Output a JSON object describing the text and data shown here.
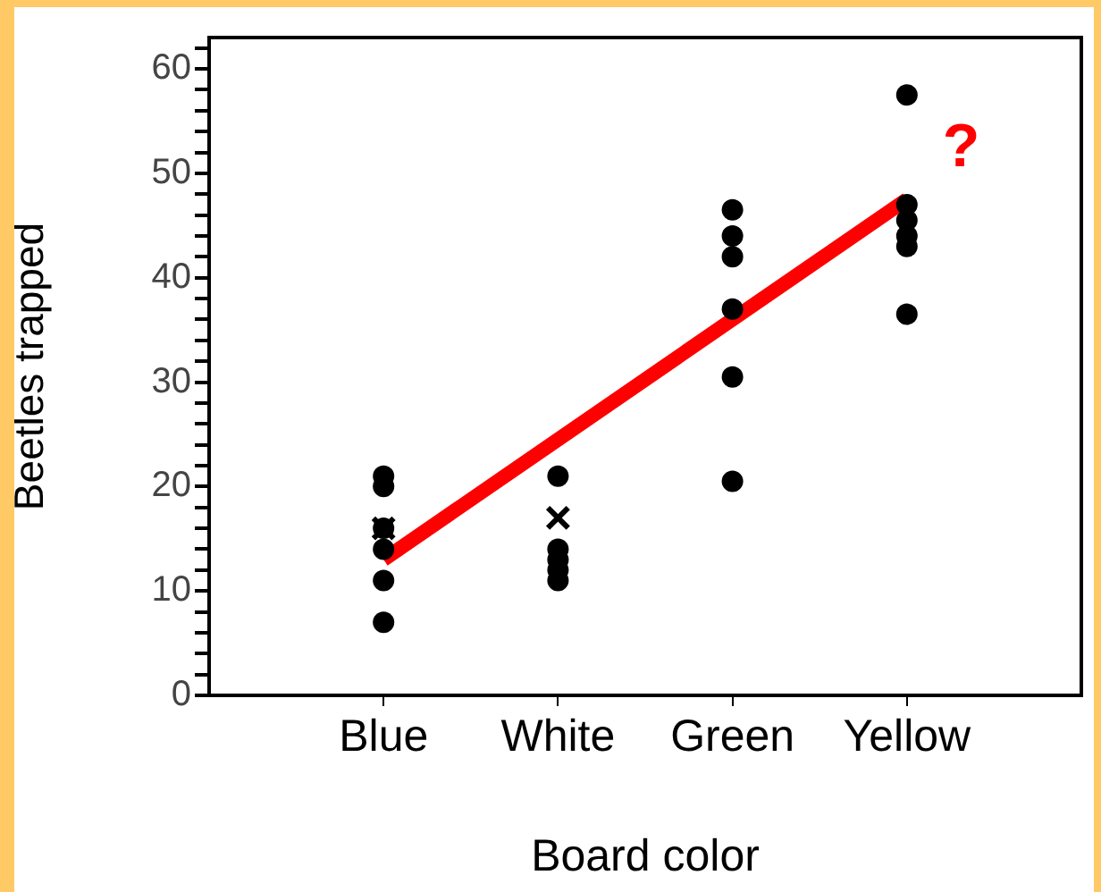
{
  "chart_data": {
    "type": "scatter",
    "xlabel": "Board color",
    "ylabel": "Beetles trapped",
    "categories": [
      "Blue",
      "White",
      "Green",
      "Yellow"
    ],
    "ylim": [
      0,
      63
    ],
    "yticks": [
      0,
      {
        "value": 2,
        "label": null
      },
      {
        "value": 4,
        "label": null
      },
      {
        "value": 6,
        "label": null
      },
      {
        "value": 8,
        "label": null
      },
      10,
      {
        "value": 12,
        "label": null
      },
      {
        "value": 14,
        "label": null
      },
      {
        "value": 16,
        "label": null
      },
      {
        "value": 18,
        "label": null
      },
      20,
      {
        "value": 22,
        "label": null
      },
      {
        "value": 24,
        "label": null
      },
      {
        "value": 26,
        "label": null
      },
      {
        "value": 28,
        "label": null
      },
      30,
      {
        "value": 32,
        "label": null
      },
      {
        "value": 34,
        "label": null
      },
      {
        "value": 36,
        "label": null
      },
      {
        "value": 38,
        "label": null
      },
      40,
      {
        "value": 42,
        "label": null
      },
      {
        "value": 44,
        "label": null
      },
      {
        "value": 46,
        "label": null
      },
      {
        "value": 48,
        "label": null
      },
      50,
      {
        "value": 52,
        "label": null
      },
      {
        "value": 54,
        "label": null
      },
      {
        "value": 56,
        "label": null
      },
      {
        "value": 58,
        "label": null
      },
      60,
      {
        "value": 62,
        "label": null
      }
    ],
    "grid": false,
    "legend": false,
    "series": [
      {
        "marker": "circle",
        "color": "#000000",
        "x": [
          "Blue",
          "Blue",
          "Blue",
          "Blue",
          "Blue",
          "Blue",
          "White",
          "White",
          "White",
          "White",
          "White",
          "Green",
          "Green",
          "Green",
          "Green",
          "Green",
          "Green",
          "Yellow",
          "Yellow",
          "Yellow",
          "Yellow",
          "Yellow",
          "Yellow"
        ],
        "values": [
          21,
          20,
          16,
          14,
          11,
          7,
          21,
          14,
          13,
          12,
          11,
          46.5,
          44,
          42,
          37,
          30.5,
          20.5,
          57.5,
          47,
          45.5,
          44,
          43,
          36.5
        ]
      },
      {
        "marker": "cross",
        "color": "#000000",
        "x": [
          "Blue",
          "White"
        ],
        "values": [
          16,
          17
        ]
      },
      {
        "type": "line",
        "marker": "none",
        "line_style": "solid",
        "color": "#ff0000",
        "x": [
          "Blue",
          "Yellow"
        ],
        "values": [
          13,
          47.5
        ]
      }
    ],
    "annotations": [
      "?"
    ]
  }
}
